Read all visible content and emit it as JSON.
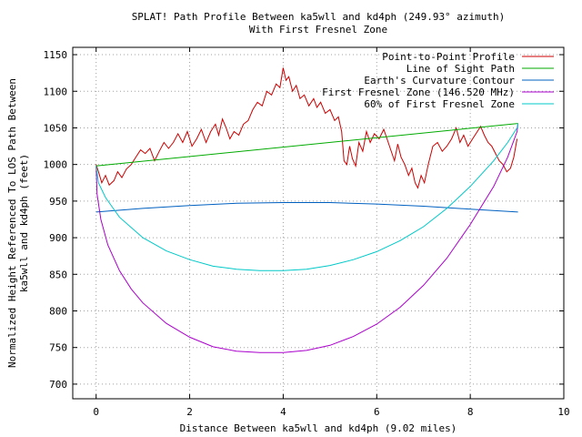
{
  "chart_data": {
    "type": "line",
    "title": "SPLAT! Path Profile Between ka5wll and kd4ph (249.93° azimuth)",
    "subtitle": "With First Fresnel Zone",
    "xlabel": "Distance Between ka5wll and kd4ph (9.02 miles)",
    "ylabel_lines": [
      "Normalized Height Referenced To LOS Path Between",
      "ka5wll and kd4ph (feet)"
    ],
    "xlim": [
      -0.5,
      10
    ],
    "ylim": [
      680,
      1160
    ],
    "x_ticks": [
      0,
      2,
      4,
      6,
      8,
      10
    ],
    "y_ticks": [
      700,
      750,
      800,
      850,
      900,
      950,
      1000,
      1050,
      1100,
      1150
    ],
    "grid": true,
    "legend_position": "top-right",
    "series": [
      {
        "name": "Point-to-Point Profile",
        "color": "#cc0000",
        "points": [
          [
            0.0,
            1000
          ],
          [
            0.06,
            988
          ],
          [
            0.12,
            975
          ],
          [
            0.2,
            985
          ],
          [
            0.28,
            972
          ],
          [
            0.38,
            978
          ],
          [
            0.46,
            990
          ],
          [
            0.55,
            982
          ],
          [
            0.65,
            994
          ],
          [
            0.75,
            1000
          ],
          [
            0.85,
            1010
          ],
          [
            0.95,
            1020
          ],
          [
            1.05,
            1015
          ],
          [
            1.15,
            1022
          ],
          [
            1.25,
            1005
          ],
          [
            1.35,
            1018
          ],
          [
            1.45,
            1030
          ],
          [
            1.55,
            1022
          ],
          [
            1.65,
            1030
          ],
          [
            1.75,
            1042
          ],
          [
            1.85,
            1030
          ],
          [
            1.95,
            1045
          ],
          [
            2.05,
            1025
          ],
          [
            2.15,
            1035
          ],
          [
            2.25,
            1048
          ],
          [
            2.35,
            1030
          ],
          [
            2.45,
            1045
          ],
          [
            2.55,
            1055
          ],
          [
            2.62,
            1040
          ],
          [
            2.7,
            1062
          ],
          [
            2.78,
            1050
          ],
          [
            2.86,
            1035
          ],
          [
            2.95,
            1045
          ],
          [
            3.05,
            1040
          ],
          [
            3.15,
            1055
          ],
          [
            3.25,
            1060
          ],
          [
            3.35,
            1075
          ],
          [
            3.45,
            1085
          ],
          [
            3.55,
            1080
          ],
          [
            3.65,
            1100
          ],
          [
            3.75,
            1095
          ],
          [
            3.85,
            1110
          ],
          [
            3.93,
            1105
          ],
          [
            4.0,
            1132
          ],
          [
            4.06,
            1115
          ],
          [
            4.12,
            1120
          ],
          [
            4.2,
            1100
          ],
          [
            4.28,
            1108
          ],
          [
            4.36,
            1090
          ],
          [
            4.45,
            1095
          ],
          [
            4.55,
            1080
          ],
          [
            4.65,
            1090
          ],
          [
            4.72,
            1078
          ],
          [
            4.8,
            1085
          ],
          [
            4.9,
            1070
          ],
          [
            5.0,
            1075
          ],
          [
            5.1,
            1060
          ],
          [
            5.18,
            1065
          ],
          [
            5.25,
            1045
          ],
          [
            5.3,
            1005
          ],
          [
            5.36,
            1000
          ],
          [
            5.42,
            1025
          ],
          [
            5.48,
            1008
          ],
          [
            5.55,
            998
          ],
          [
            5.62,
            1030
          ],
          [
            5.7,
            1018
          ],
          [
            5.78,
            1045
          ],
          [
            5.86,
            1030
          ],
          [
            5.95,
            1042
          ],
          [
            6.05,
            1035
          ],
          [
            6.15,
            1048
          ],
          [
            6.22,
            1035
          ],
          [
            6.3,
            1020
          ],
          [
            6.38,
            1005
          ],
          [
            6.45,
            1028
          ],
          [
            6.52,
            1010
          ],
          [
            6.6,
            1000
          ],
          [
            6.68,
            985
          ],
          [
            6.75,
            995
          ],
          [
            6.82,
            975
          ],
          [
            6.88,
            968
          ],
          [
            6.95,
            985
          ],
          [
            7.02,
            975
          ],
          [
            7.1,
            1000
          ],
          [
            7.2,
            1025
          ],
          [
            7.3,
            1030
          ],
          [
            7.4,
            1018
          ],
          [
            7.5,
            1025
          ],
          [
            7.6,
            1035
          ],
          [
            7.7,
            1050
          ],
          [
            7.78,
            1030
          ],
          [
            7.86,
            1040
          ],
          [
            7.95,
            1025
          ],
          [
            8.05,
            1035
          ],
          [
            8.15,
            1045
          ],
          [
            8.22,
            1052
          ],
          [
            8.3,
            1040
          ],
          [
            8.38,
            1030
          ],
          [
            8.46,
            1025
          ],
          [
            8.54,
            1015
          ],
          [
            8.62,
            1005
          ],
          [
            8.7,
            1000
          ],
          [
            8.78,
            990
          ],
          [
            8.86,
            995
          ],
          [
            8.93,
            1010
          ],
          [
            9.0,
            1035
          ]
        ]
      },
      {
        "name": "Line of Sight Path",
        "color": "#00aa00",
        "points": [
          [
            0.0,
            998
          ],
          [
            9.02,
            1056
          ]
        ]
      },
      {
        "name": "Earth's Curvature Contour",
        "color": "#0060c0",
        "points": [
          [
            0.0,
            935
          ],
          [
            1.0,
            940
          ],
          [
            2.0,
            944
          ],
          [
            3.0,
            947
          ],
          [
            4.0,
            948
          ],
          [
            5.0,
            948
          ],
          [
            6.0,
            946
          ],
          [
            7.0,
            943
          ],
          [
            8.0,
            939
          ],
          [
            9.02,
            935
          ]
        ]
      },
      {
        "name": "First Fresnel Zone (146.520 MHz)",
        "color": "#aa00cc",
        "points": [
          [
            0.0,
            998
          ],
          [
            0.02,
            960
          ],
          [
            0.1,
            925
          ],
          [
            0.25,
            890
          ],
          [
            0.5,
            855
          ],
          [
            0.75,
            830
          ],
          [
            1.0,
            811
          ],
          [
            1.5,
            783
          ],
          [
            2.0,
            764
          ],
          [
            2.5,
            751
          ],
          [
            3.0,
            745
          ],
          [
            3.5,
            743
          ],
          [
            4.0,
            743
          ],
          [
            4.5,
            746
          ],
          [
            5.0,
            753
          ],
          [
            5.5,
            765
          ],
          [
            6.0,
            782
          ],
          [
            6.5,
            805
          ],
          [
            7.0,
            835
          ],
          [
            7.5,
            872
          ],
          [
            8.0,
            918
          ],
          [
            8.5,
            970
          ],
          [
            8.8,
            1010
          ],
          [
            9.0,
            1045
          ],
          [
            9.02,
            1056
          ]
        ]
      },
      {
        "name": "60% of First Fresnel Zone",
        "color": "#00c8c8",
        "points": [
          [
            0.0,
            998
          ],
          [
            0.05,
            975
          ],
          [
            0.2,
            955
          ],
          [
            0.5,
            928
          ],
          [
            1.0,
            900
          ],
          [
            1.5,
            882
          ],
          [
            2.0,
            870
          ],
          [
            2.5,
            861
          ],
          [
            3.0,
            857
          ],
          [
            3.5,
            855
          ],
          [
            4.0,
            855
          ],
          [
            4.5,
            857
          ],
          [
            5.0,
            862
          ],
          [
            5.5,
            870
          ],
          [
            6.0,
            881
          ],
          [
            6.5,
            896
          ],
          [
            7.0,
            915
          ],
          [
            7.5,
            940
          ],
          [
            8.0,
            970
          ],
          [
            8.5,
            1005
          ],
          [
            8.8,
            1030
          ],
          [
            9.0,
            1050
          ],
          [
            9.02,
            1056
          ]
        ]
      }
    ]
  }
}
